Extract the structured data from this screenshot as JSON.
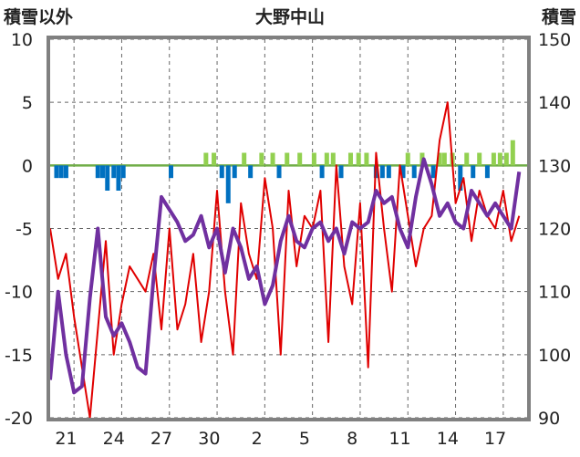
{
  "chart_data": {
    "type": "line",
    "title": "大野中山",
    "left_axis_label": "積雪以外",
    "right_axis_label": "積雪",
    "left_ylim": [
      -20,
      10
    ],
    "left_yticks": [
      "10",
      "5",
      "0",
      "-5",
      "-10",
      "-15",
      "-20"
    ],
    "right_ylim": [
      90,
      150
    ],
    "right_yticks": [
      "150",
      "140",
      "130",
      "120",
      "110",
      "100",
      "90"
    ],
    "xlim": [
      0,
      30
    ],
    "x_tick_labels": [
      "21",
      "24",
      "27",
      "30",
      "2",
      "5",
      "8",
      "11",
      "14",
      "17"
    ],
    "grid": true,
    "colors": {
      "temperature": "#e00000",
      "snow_depth": "#7030a0",
      "bar_positive": "#92d050",
      "bar_negative": "#0070c0",
      "zero_line": "#70ad47",
      "frame": "#808080"
    },
    "series": [
      {
        "key": "temperature",
        "axis": "left",
        "x": [
          0,
          0.5,
          1,
          1.5,
          2,
          2.5,
          3,
          3.5,
          4,
          4.5,
          5,
          5.5,
          6,
          6.5,
          7,
          7.5,
          8,
          8.5,
          9,
          9.5,
          10,
          10.5,
          11,
          11.5,
          12,
          12.5,
          13,
          13.5,
          14,
          14.5,
          15,
          15.5,
          16,
          16.5,
          17,
          17.5,
          18,
          18.5,
          19,
          19.5,
          20,
          20.5,
          21,
          21.5,
          22,
          22.5,
          23,
          23.5,
          24,
          24.5,
          25,
          25.5,
          26,
          26.5,
          27,
          27.5,
          28,
          28.5,
          29,
          29.5
        ],
        "values": [
          -5,
          -9,
          -7,
          -12,
          -16,
          -20,
          -13,
          -6,
          -15,
          -11,
          -8,
          -9,
          -10,
          -7,
          -13,
          -5,
          -13,
          -11,
          -7,
          -14,
          -10,
          -2,
          -10,
          -15,
          -3,
          -7,
          -9,
          -1,
          -5,
          -15,
          -2,
          -8,
          -4,
          -5,
          -2,
          -14,
          0,
          -8,
          -11,
          -3,
          -16,
          1,
          -5,
          -10,
          0,
          -4,
          -8,
          -5,
          -4,
          2,
          5,
          -3,
          -1,
          -6,
          -2,
          -4,
          -5,
          -2,
          -6,
          -4
        ]
      },
      {
        "key": "snow_depth",
        "axis": "right",
        "x": [
          0,
          0.5,
          1,
          1.5,
          2,
          2.5,
          3,
          3.5,
          4,
          4.5,
          5,
          5.5,
          6,
          6.5,
          7,
          7.5,
          8,
          8.5,
          9,
          9.5,
          10,
          10.5,
          11,
          11.5,
          12,
          12.5,
          13,
          13.5,
          14,
          14.5,
          15,
          15.5,
          16,
          16.5,
          17,
          17.5,
          18,
          18.5,
          19,
          19.5,
          20,
          20.5,
          21,
          21.5,
          22,
          22.5,
          23,
          23.5,
          24,
          24.5,
          25,
          25.5,
          26,
          26.5,
          27,
          27.5,
          28,
          28.5,
          29,
          29.5
        ],
        "values": [
          96,
          110,
          100,
          94,
          95,
          109,
          120,
          106,
          103,
          105,
          102,
          98,
          97,
          112,
          125,
          123,
          121,
          118,
          119,
          122,
          117,
          120,
          113,
          120,
          117,
          112,
          114,
          108,
          111,
          118,
          122,
          118,
          117,
          120,
          121,
          118,
          120,
          116,
          121,
          120,
          121,
          126,
          124,
          125,
          120,
          117,
          125,
          131,
          127,
          122,
          124,
          121,
          120,
          126,
          124,
          122,
          124,
          122,
          120,
          129
        ]
      }
    ],
    "bars": {
      "key": "daily_bars",
      "axis": "left",
      "x": [
        0.4,
        0.7,
        1.0,
        3.0,
        3.3,
        3.6,
        4.0,
        4.3,
        4.6,
        7.6,
        9.8,
        10.3,
        10.8,
        11.2,
        11.6,
        12.2,
        12.6,
        13.3,
        14.0,
        14.4,
        14.9,
        15.7,
        16.6,
        17.1,
        17.4,
        17.8,
        18.3,
        18.9,
        19.4,
        19.9,
        20.5,
        20.9,
        21.3,
        22.2,
        22.5,
        22.9,
        23.4,
        24.1,
        24.5,
        24.8,
        25.3,
        25.8,
        26.2,
        26.6,
        27.0,
        27.5,
        27.9,
        28.3,
        28.7,
        29.1
      ],
      "values": [
        -1,
        -1,
        -1,
        -1,
        -1,
        -2,
        -1,
        -2,
        -1,
        -1,
        1,
        1,
        -1,
        -3,
        -1,
        1,
        -1,
        1,
        1,
        -1,
        1,
        1,
        1,
        -1,
        1,
        1,
        -1,
        1,
        1,
        1,
        -1,
        -1,
        -1,
        -1,
        1,
        -1,
        1,
        -1,
        1,
        1,
        1,
        -2,
        1,
        -1,
        1,
        -1,
        1,
        1,
        1,
        2
      ]
    }
  }
}
